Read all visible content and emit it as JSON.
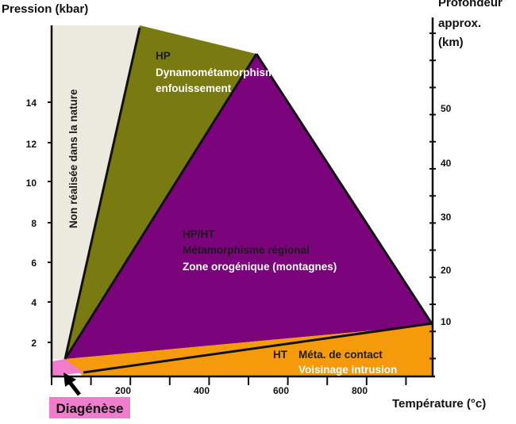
{
  "axes": {
    "y_title": "Pression (kbar)",
    "x_title": "Température (°c)",
    "right_title": [
      "Profondeur",
      "approx.",
      "(km)"
    ],
    "y_ticks": [
      "14",
      "12",
      "10",
      "8",
      "6",
      "4",
      "2"
    ],
    "x_ticks": [
      "200",
      "400",
      "600",
      "800"
    ],
    "right_ticks": [
      "50",
      "40",
      "30",
      "20",
      "10"
    ]
  },
  "zones": {
    "non_realise": "Non réalisée dans la nature",
    "hp": [
      "HP",
      "Dynamométamorphisme",
      "enfouissement"
    ],
    "hpht": [
      "HP/HT",
      "Métamorphisme régional",
      "Zone orogénique (montagnes)"
    ],
    "ht": [
      "HT",
      "Méta. de contact",
      "Voisinage intrusion"
    ],
    "diagenese": "Diagénèse"
  },
  "colors": {
    "non_realise": "#ece9df",
    "hp": "#7a7a12",
    "hpht": "#7b037b",
    "ht": "#f59a0a",
    "diagenese": "#f07ccc",
    "text_dark": "#1a1a1a",
    "text_light": "#ffffff"
  }
}
